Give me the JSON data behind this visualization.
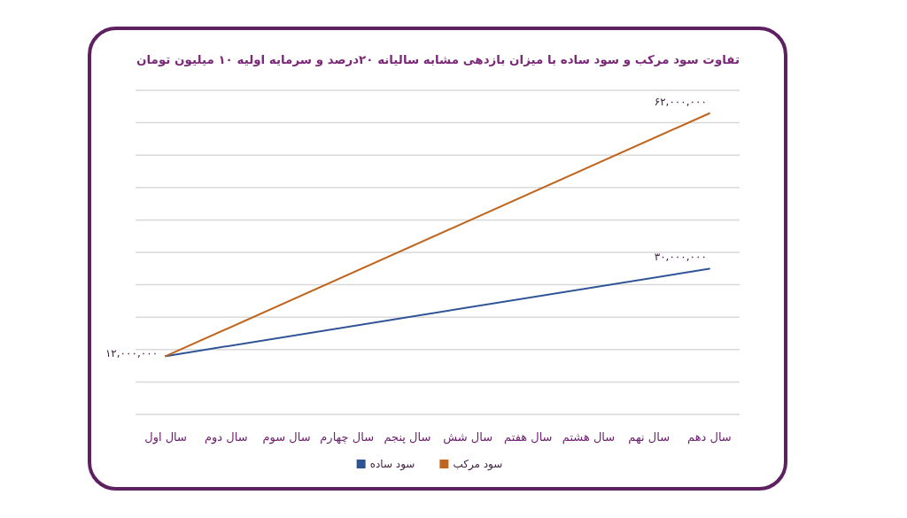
{
  "chart_data": {
    "type": "line",
    "title": "تفاوت سود مرکب و سود ساده با میزان بازدهی مشابه سالیانه ۲۰درصد و سرمایه اولیه ۱۰ میلیون تومان",
    "categories": [
      "سال اول",
      "سال دوم",
      "سال سوم",
      "سال چهارم",
      "سال پنجم",
      "سال شش",
      "سال هفتم",
      "سال هشتم",
      "سال نهم",
      "سال دهم"
    ],
    "series": [
      {
        "name": "سود ساده",
        "color": "#2f5496",
        "x": [
          "سال اول",
          "سال دهم"
        ],
        "values": [
          12000000,
          30000000
        ],
        "value_labels": [
          "۱۲,۰۰۰,۰۰۰",
          "۳۰,۰۰۰,۰۰۰"
        ]
      },
      {
        "name": "سود مرکب",
        "color": "#c0651e",
        "x": [
          "سال اول",
          "سال دهم"
        ],
        "values": [
          12000000,
          62000000
        ],
        "value_labels": [
          null,
          "۶۲,۰۰۰,۰۰۰"
        ]
      }
    ],
    "grid": "y",
    "legend": "bottom"
  }
}
